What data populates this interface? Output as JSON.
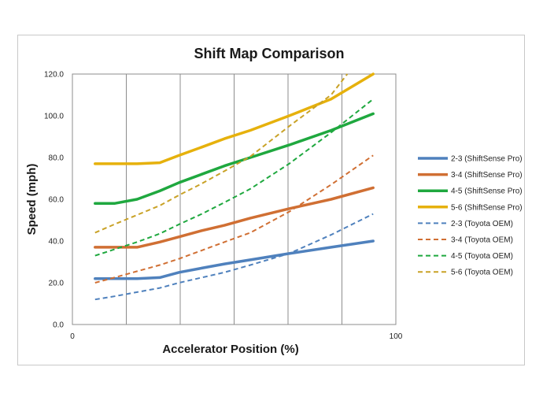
{
  "chart_data": {
    "type": "line",
    "title": "Shift Map Comparison",
    "xlabel": "Accelerator Position (%)",
    "ylabel": "Speed (mph)",
    "xlim": [
      0,
      100
    ],
    "ylim": [
      0,
      120
    ],
    "x_tick_labels": [
      "0",
      "100"
    ],
    "y_ticks": [
      0,
      20,
      40,
      60,
      80,
      100,
      120
    ],
    "y_tick_labels": [
      "0.0",
      "20.0",
      "40.0",
      "60.0",
      "80.0",
      "100.0",
      "120.0"
    ],
    "grid": "vertical",
    "legend_position": "right",
    "series": [
      {
        "name": "2-3 (ShiftSense Pro)",
        "color": "#4f81bd",
        "style": "solid",
        "points": [
          [
            7,
            22
          ],
          [
            20,
            22
          ],
          [
            27,
            22.5
          ],
          [
            33,
            25
          ],
          [
            40,
            27
          ],
          [
            47,
            29
          ],
          [
            55,
            31
          ],
          [
            67,
            34
          ],
          [
            80,
            37
          ],
          [
            93,
            40
          ]
        ]
      },
      {
        "name": "3-4 (ShiftSense Pro)",
        "color": "#d06f33",
        "style": "solid",
        "points": [
          [
            7,
            37
          ],
          [
            20,
            37
          ],
          [
            27,
            39.5
          ],
          [
            33,
            42
          ],
          [
            40,
            45
          ],
          [
            47,
            47.5
          ],
          [
            55,
            51
          ],
          [
            67,
            55.5
          ],
          [
            80,
            60
          ],
          [
            93,
            65.5
          ]
        ]
      },
      {
        "name": "4-5 (ShiftSense Pro)",
        "color": "#1fa83f",
        "style": "solid",
        "points": [
          [
            7,
            58
          ],
          [
            13,
            58
          ],
          [
            20,
            60
          ],
          [
            27,
            64
          ],
          [
            33,
            68
          ],
          [
            40,
            72
          ],
          [
            47,
            76
          ],
          [
            55,
            80
          ],
          [
            67,
            86
          ],
          [
            80,
            93
          ],
          [
            93,
            101
          ]
        ]
      },
      {
        "name": "5-6 (ShiftSense Pro)",
        "color": "#e6b10c",
        "style": "solid",
        "points": [
          [
            7,
            77
          ],
          [
            20,
            77
          ],
          [
            27,
            77.5
          ],
          [
            33,
            81
          ],
          [
            40,
            85
          ],
          [
            47,
            89
          ],
          [
            55,
            93
          ],
          [
            67,
            100
          ],
          [
            80,
            108
          ],
          [
            93,
            120
          ]
        ]
      },
      {
        "name": "2-3 (Toyota OEM)",
        "color": "#4f81bd",
        "style": "dashed",
        "points": [
          [
            7,
            12
          ],
          [
            13,
            13.5
          ],
          [
            20,
            15.5
          ],
          [
            27,
            17.5
          ],
          [
            33,
            20
          ],
          [
            40,
            22.5
          ],
          [
            47,
            25
          ],
          [
            55,
            28.5
          ],
          [
            67,
            34
          ],
          [
            80,
            43
          ],
          [
            93,
            53
          ]
        ]
      },
      {
        "name": "3-4 (Toyota OEM)",
        "color": "#d06f33",
        "style": "dashed",
        "points": [
          [
            7,
            20
          ],
          [
            13,
            22.5
          ],
          [
            20,
            25.5
          ],
          [
            27,
            28.5
          ],
          [
            33,
            31.5
          ],
          [
            40,
            35.5
          ],
          [
            47,
            39.5
          ],
          [
            55,
            44
          ],
          [
            67,
            54
          ],
          [
            80,
            67
          ],
          [
            93,
            81
          ]
        ]
      },
      {
        "name": "4-5 (Toyota OEM)",
        "color": "#1fa83f",
        "style": "dashed",
        "points": [
          [
            7,
            33
          ],
          [
            13,
            36
          ],
          [
            20,
            39.5
          ],
          [
            27,
            43.5
          ],
          [
            33,
            48
          ],
          [
            40,
            53
          ],
          [
            47,
            58.5
          ],
          [
            55,
            65
          ],
          [
            67,
            77
          ],
          [
            80,
            92
          ],
          [
            93,
            108
          ]
        ]
      },
      {
        "name": "5-6 (Toyota OEM)",
        "color": "#c9a227",
        "style": "dashed",
        "points": [
          [
            7,
            44
          ],
          [
            13,
            48
          ],
          [
            20,
            52.5
          ],
          [
            27,
            57
          ],
          [
            33,
            62
          ],
          [
            40,
            67.5
          ],
          [
            47,
            73.5
          ],
          [
            55,
            80.5
          ],
          [
            67,
            95
          ],
          [
            80,
            110
          ],
          [
            85,
            120
          ]
        ]
      }
    ]
  }
}
